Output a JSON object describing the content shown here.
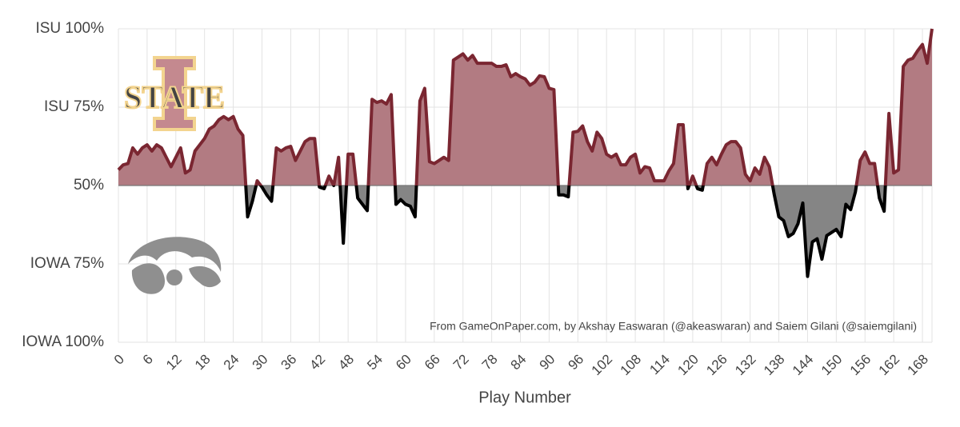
{
  "chart_data": {
    "type": "line",
    "xlabel": "Play Number",
    "annotation": "From GameOnPaper.com, by Akshay Easwaran (@akeaswaran) and Saiem Gilani (@saiemgilani)",
    "logo_text": "STATE",
    "xlim": [
      0,
      170
    ],
    "xticks": [
      0,
      6,
      12,
      18,
      24,
      30,
      36,
      42,
      48,
      54,
      60,
      66,
      72,
      78,
      84,
      90,
      96,
      102,
      108,
      114,
      120,
      126,
      132,
      138,
      144,
      150,
      156,
      162,
      168
    ],
    "ylim": [
      0,
      100
    ],
    "yticks": [
      {
        "value": 0,
        "label": "IOWA 100%"
      },
      {
        "value": 25,
        "label": "IOWA 75%"
      },
      {
        "value": 50,
        "label": "50%"
      },
      {
        "value": 75,
        "label": "ISU 75%"
      },
      {
        "value": 100,
        "label": "ISU 100%"
      }
    ],
    "baseline": 50,
    "grid": true,
    "above_color": "#7a2631",
    "above_fill": "#b27b82",
    "below_color": "#000000",
    "below_fill": "#858585",
    "x": [
      0,
      1,
      2,
      3,
      4,
      5,
      6,
      7,
      8,
      9,
      10,
      11,
      12,
      13,
      14,
      15,
      16,
      17,
      18,
      19,
      20,
      21,
      22,
      23,
      24,
      25,
      26,
      27,
      28,
      29,
      30,
      31,
      32,
      33,
      34,
      35,
      36,
      37,
      38,
      39,
      40,
      41,
      42,
      43,
      44,
      45,
      46,
      47,
      48,
      49,
      50,
      51,
      52,
      53,
      54,
      55,
      56,
      57,
      58,
      59,
      60,
      61,
      62,
      63,
      64,
      65,
      66,
      67,
      68,
      69,
      70,
      71,
      72,
      73,
      74,
      75,
      76,
      77,
      78,
      79,
      80,
      81,
      82,
      83,
      84,
      85,
      86,
      87,
      88,
      89,
      90,
      91,
      92,
      93,
      94,
      95,
      96,
      97,
      98,
      99,
      100,
      101,
      102,
      103,
      104,
      105,
      106,
      107,
      108,
      109,
      110,
      111,
      112,
      113,
      114,
      115,
      116,
      117,
      118,
      119,
      120,
      121,
      122,
      123,
      124,
      125,
      126,
      127,
      128,
      129,
      130,
      131,
      132,
      133,
      134,
      135,
      136,
      137,
      138,
      139,
      140,
      141,
      142,
      143,
      144,
      145,
      146,
      147,
      148,
      149,
      150,
      151,
      152,
      153,
      154,
      155,
      156,
      157,
      158,
      159,
      160,
      161,
      162,
      163,
      164,
      165,
      166,
      167,
      168,
      169,
      170
    ],
    "values": [
      55,
      56.6,
      57,
      62,
      60,
      62,
      63,
      61,
      63,
      62,
      59,
      56,
      59,
      62,
      54,
      55,
      61,
      63,
      65,
      68,
      69,
      71,
      72,
      71,
      72,
      68,
      66,
      40,
      45,
      51.5,
      49.5,
      47,
      45,
      62,
      61,
      62,
      62.5,
      58,
      61,
      64,
      65,
      65,
      49.5,
      49,
      53,
      50,
      59,
      31.6,
      60,
      60,
      46,
      44,
      42,
      77.5,
      76.5,
      77,
      76,
      79,
      44,
      45.5,
      44,
      43.4,
      40,
      77,
      81,
      57.6,
      57,
      58,
      59,
      58,
      90,
      91,
      92,
      90,
      91.5,
      89,
      89,
      89,
      89,
      88,
      88,
      88.5,
      84.7,
      85.7,
      84.7,
      84,
      82,
      83,
      85,
      84.7,
      81,
      80.6,
      47,
      47,
      46.4,
      67,
      67.3,
      69,
      64,
      61,
      67,
      65,
      60,
      59,
      60,
      56.6,
      56.6,
      59,
      60,
      54,
      56,
      55.6,
      51.5,
      51.5,
      51.5,
      54.6,
      57,
      69.4,
      69.4,
      49,
      53,
      49,
      48.5,
      57,
      59,
      56.6,
      60,
      63,
      64,
      64,
      62,
      53.6,
      51.5,
      55.6,
      53.6,
      59,
      56,
      47.4,
      40,
      38.8,
      33.7,
      34.7,
      37.8,
      44.4,
      21,
      32,
      33,
      26.5,
      34,
      35,
      36,
      33.7,
      44,
      42.3,
      48,
      58,
      60.7,
      57,
      57,
      46,
      41.8,
      73,
      54,
      55,
      88,
      90,
      90.6,
      93,
      95,
      89,
      100
    ]
  }
}
